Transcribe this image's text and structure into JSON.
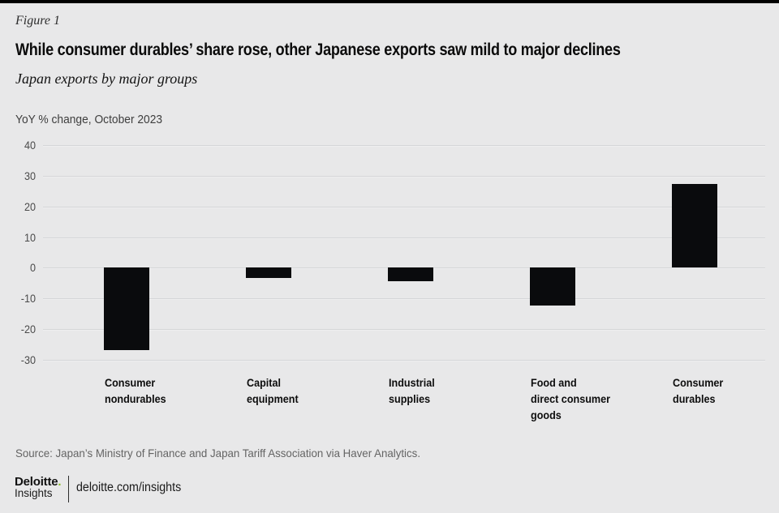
{
  "header": {
    "figure_label": "Figure 1",
    "title": "While consumer durables’ share rose, other Japanese exports saw mild to major declines",
    "subtitle": "Japan exports by major groups"
  },
  "chart_data": {
    "type": "bar",
    "title": "While consumer durables’ share rose, other Japanese exports saw mild to major declines",
    "subtitle": "Japan exports by major groups",
    "units_label": "YoY % change, October 2023",
    "categories": [
      "Consumer\nnondurables",
      "Capital\nequipment",
      "Industrial\nsupplies",
      "Food and\ndirect consumer\ngoods",
      "Consumer\ndurables"
    ],
    "values": [
      -26.8,
      -3.3,
      -4.4,
      -12.2,
      27.4
    ],
    "yticks": [
      40,
      30,
      20,
      10,
      0,
      -10,
      -20,
      -30
    ],
    "ylim": [
      -30,
      40
    ],
    "xlabel": "",
    "ylabel": "YoY % change",
    "grid": true,
    "legend": "none",
    "bar_color": "#0a0b0d",
    "background_color": "#e8e8e9"
  },
  "footer": {
    "source": "Source: Japan’s Ministry of Finance and Japan Tariff Association via Haver Analytics.",
    "logo": {
      "brand": "Deloitte",
      "dot": ".",
      "sub": "Insights",
      "dot_color": "#86bc25"
    },
    "link": "deloitte.com/insights"
  }
}
